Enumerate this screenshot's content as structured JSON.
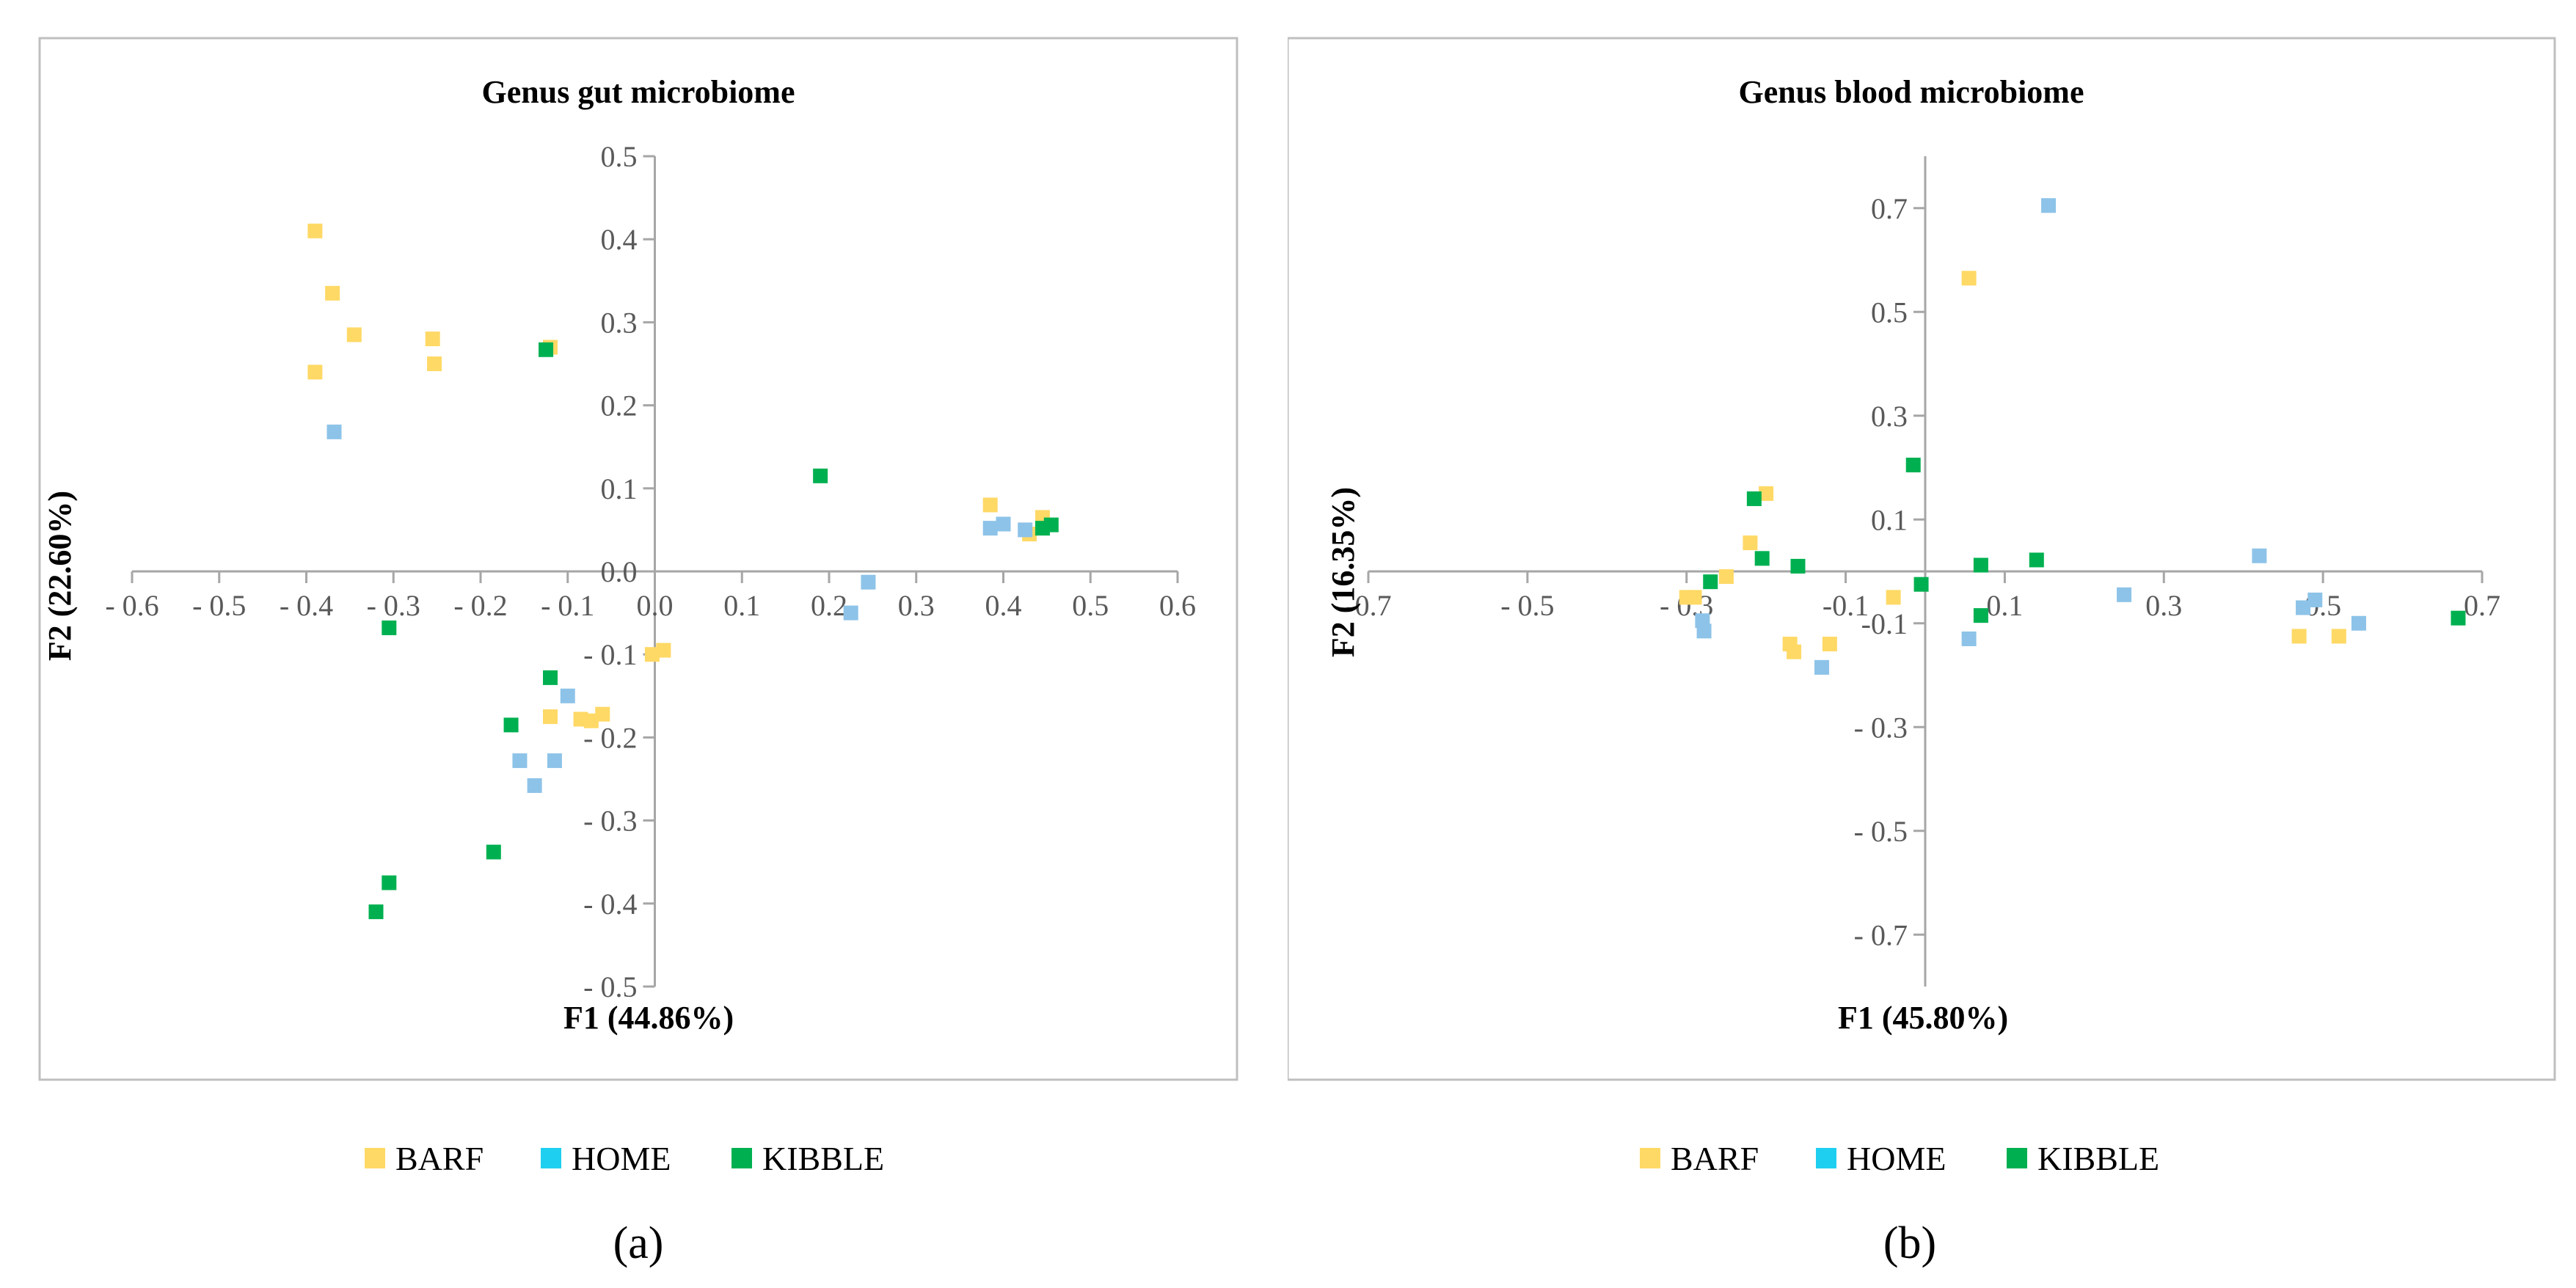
{
  "chart_data": [
    {
      "type": "scatter",
      "sub_label": "(a)",
      "title": "Genus gut microbiome",
      "xlabel": "F1 (44.86%)",
      "ylabel": "F2 (22.60%)",
      "xlim": [
        -0.6,
        0.6
      ],
      "ylim": [
        -0.5,
        0.5
      ],
      "xticks": [
        -0.6,
        -0.5,
        -0.4,
        -0.3,
        -0.2,
        -0.1,
        0.0,
        0.1,
        0.2,
        0.3,
        0.4,
        0.5,
        0.6
      ],
      "xtick_labels": [
        "- 0.6",
        "- 0.5",
        "- 0.4",
        "- 0.3",
        "- 0.2",
        "- 0.1",
        "0.0",
        "0.1",
        "0.2",
        "0.3",
        "0.4",
        "0.5",
        "0.6"
      ],
      "yticks": [
        -0.5,
        -0.4,
        -0.3,
        -0.2,
        -0.1,
        0.0,
        0.1,
        0.2,
        0.3,
        0.4,
        0.5
      ],
      "ytick_labels": [
        "- 0.5",
        "- 0.4",
        "- 0.3",
        "- 0.2",
        "- 0.1",
        "0.0",
        "0.1",
        "0.2",
        "0.3",
        "0.4",
        "0.5"
      ],
      "legend": [
        "BARF",
        "HOME",
        "KIBBLE"
      ],
      "series": [
        {
          "name": "BARF",
          "color": "#FFD966",
          "points": [
            [
              -0.39,
              0.41
            ],
            [
              -0.37,
              0.335
            ],
            [
              -0.345,
              0.285
            ],
            [
              -0.39,
              0.24
            ],
            [
              -0.255,
              0.28
            ],
            [
              -0.253,
              0.25
            ],
            [
              -0.12,
              0.27
            ],
            [
              0.385,
              0.08
            ],
            [
              0.445,
              0.065
            ],
            [
              0.43,
              0.045
            ],
            [
              0.01,
              -0.095
            ],
            [
              -0.003,
              -0.1
            ],
            [
              -0.06,
              -0.172
            ],
            [
              -0.12,
              -0.175
            ],
            [
              -0.073,
              -0.18
            ],
            [
              -0.085,
              -0.178
            ]
          ]
        },
        {
          "name": "HOME",
          "color": "#8DC3E8",
          "points": [
            [
              -0.368,
              0.168
            ],
            [
              0.385,
              0.052
            ],
            [
              0.4,
              0.057
            ],
            [
              0.425,
              0.05
            ],
            [
              0.245,
              -0.013
            ],
            [
              0.225,
              -0.05
            ],
            [
              -0.1,
              -0.15
            ],
            [
              -0.155,
              -0.228
            ],
            [
              -0.115,
              -0.228
            ],
            [
              -0.138,
              -0.258
            ]
          ]
        },
        {
          "name": "KIBBLE",
          "color": "#00B050",
          "points": [
            [
              -0.125,
              0.267
            ],
            [
              0.19,
              0.115
            ],
            [
              0.455,
              0.056
            ],
            [
              0.445,
              0.052
            ],
            [
              -0.305,
              -0.068
            ],
            [
              -0.12,
              -0.128
            ],
            [
              -0.165,
              -0.185
            ],
            [
              -0.185,
              -0.338
            ],
            [
              -0.305,
              -0.375
            ],
            [
              -0.32,
              -0.41
            ]
          ]
        }
      ]
    },
    {
      "type": "scatter",
      "sub_label": "(b)",
      "title": "Genus blood microbiome",
      "xlabel": "F1 (45.80%)",
      "ylabel": "F2 (16.35%)",
      "xlim": [
        -0.7,
        0.7
      ],
      "ylim": [
        -0.8,
        0.8
      ],
      "xticks": [
        -0.7,
        -0.5,
        -0.3,
        -0.1,
        0.1,
        0.3,
        0.5,
        0.7
      ],
      "xtick_labels": [
        "-0.7",
        "- 0.5",
        "- 0.3",
        "-0.1",
        "0.1",
        "0.3",
        "0.5",
        "0.7"
      ],
      "yticks": [
        -0.7,
        -0.5,
        -0.3,
        -0.1,
        0.1,
        0.3,
        0.5,
        0.7
      ],
      "ytick_labels": [
        "- 0.7",
        "- 0.5",
        "- 0.3",
        "-0.1",
        "0.1",
        "0.3",
        "0.5",
        "0.7"
      ],
      "legend": [
        "BARF",
        "HOME",
        "KIBBLE"
      ],
      "series": [
        {
          "name": "BARF",
          "color": "#FFD966",
          "points": [
            [
              0.055,
              0.565
            ],
            [
              -0.2,
              0.15
            ],
            [
              -0.22,
              0.055
            ],
            [
              -0.25,
              -0.01
            ],
            [
              -0.3,
              -0.05
            ],
            [
              -0.29,
              -0.05
            ],
            [
              -0.04,
              -0.05
            ],
            [
              -0.17,
              -0.14
            ],
            [
              -0.165,
              -0.155
            ],
            [
              -0.12,
              -0.14
            ],
            [
              0.47,
              -0.125
            ],
            [
              0.52,
              -0.125
            ]
          ]
        },
        {
          "name": "HOME",
          "color": "#8DC3E8",
          "points": [
            [
              0.155,
              0.705
            ],
            [
              0.42,
              0.03
            ],
            [
              0.25,
              -0.045
            ],
            [
              0.49,
              -0.055
            ],
            [
              0.475,
              -0.07
            ],
            [
              0.545,
              -0.1
            ],
            [
              -0.28,
              -0.095
            ],
            [
              -0.278,
              -0.115
            ],
            [
              0.055,
              -0.13
            ],
            [
              -0.13,
              -0.185
            ]
          ]
        },
        {
          "name": "KIBBLE",
          "color": "#00B050",
          "points": [
            [
              -0.015,
              0.205
            ],
            [
              -0.215,
              0.14
            ],
            [
              -0.205,
              0.025
            ],
            [
              -0.16,
              0.01
            ],
            [
              0.07,
              0.012
            ],
            [
              0.14,
              0.022
            ],
            [
              -0.27,
              -0.02
            ],
            [
              -0.005,
              -0.025
            ],
            [
              0.07,
              -0.085
            ],
            [
              0.67,
              -0.09
            ]
          ]
        }
      ]
    }
  ]
}
